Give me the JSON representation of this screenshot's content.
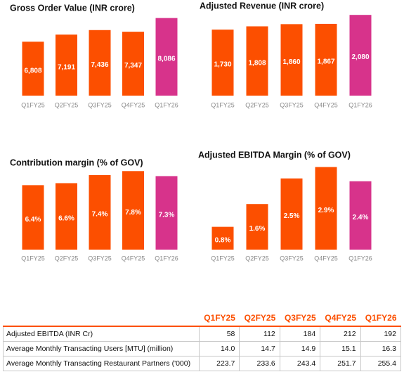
{
  "chart_data": [
    {
      "type": "bar",
      "title": "Gross Order Value (INR crore)",
      "categories": [
        "Q1FY25",
        "Q2FY25",
        "Q3FY25",
        "Q4FY25",
        "Q1FY26"
      ],
      "values": [
        6808,
        7191,
        7436,
        7347,
        8086
      ],
      "value_labels": [
        "6,808",
        "7,191",
        "7,436",
        "7,347",
        "8,086"
      ],
      "colors": [
        "#fc4f00",
        "#fc4f00",
        "#fc4f00",
        "#fc4f00",
        "#d7338b"
      ],
      "ylim": [
        3900,
        8300
      ]
    },
    {
      "type": "bar",
      "title": "Adjusted Revenue (INR crore)",
      "categories": [
        "Q1FY25",
        "Q2FY25",
        "Q3FY25",
        "Q4FY25",
        "Q1FY26"
      ],
      "values": [
        1730,
        1808,
        1860,
        1867,
        2080
      ],
      "value_labels": [
        "1,730",
        "1,808",
        "1,860",
        "1,867",
        "2,080"
      ],
      "colors": [
        "#fc4f00",
        "#fc4f00",
        "#fc4f00",
        "#fc4f00",
        "#d7338b"
      ],
      "ylim": [
        160,
        2100
      ]
    },
    {
      "type": "bar",
      "title": "Contribution margin (% of GOV)",
      "categories": [
        "Q1FY25",
        "Q2FY25",
        "Q3FY25",
        "Q4FY25",
        "Q1FY26"
      ],
      "values": [
        6.4,
        6.6,
        7.4,
        7.8,
        7.3
      ],
      "value_labels": [
        "6.4%",
        "6.6%",
        "7.4%",
        "7.8%",
        "7.3%"
      ],
      "colors": [
        "#fc4f00",
        "#fc4f00",
        "#fc4f00",
        "#fc4f00",
        "#d7338b"
      ],
      "ylim": [
        0,
        8.1
      ]
    },
    {
      "type": "bar",
      "title": "Adjusted EBITDA Margin (% of GOV)",
      "categories": [
        "Q1FY25",
        "Q2FY25",
        "Q3FY25",
        "Q4FY25",
        "Q1FY26"
      ],
      "values": [
        0.8,
        1.6,
        2.5,
        2.9,
        2.4
      ],
      "value_labels": [
        "0.8%",
        "1.6%",
        "2.5%",
        "2.9%",
        "2.4%"
      ],
      "colors": [
        "#fc4f00",
        "#fc4f00",
        "#fc4f00",
        "#fc4f00",
        "#d7338b"
      ],
      "ylim": [
        0,
        3
      ]
    }
  ],
  "table": {
    "columns": [
      "Q1FY25",
      "Q2FY25",
      "Q3FY25",
      "Q4FY25",
      "Q1FY26"
    ],
    "rows": [
      {
        "label": "Adjusted EBITDA (INR Cr)",
        "values": [
          "58",
          "112",
          "184",
          "212",
          "192"
        ]
      },
      {
        "label": "Average Monthly Transacting Users [MTU] (million)",
        "values": [
          "14.0",
          "14.7",
          "14.9",
          "15.1",
          "16.3"
        ]
      },
      {
        "label": "Average Monthly Transacting Restaurant Partners ('000)",
        "values": [
          "223.7",
          "233.6",
          "243.4",
          "251.7",
          "255.4"
        ]
      }
    ]
  }
}
